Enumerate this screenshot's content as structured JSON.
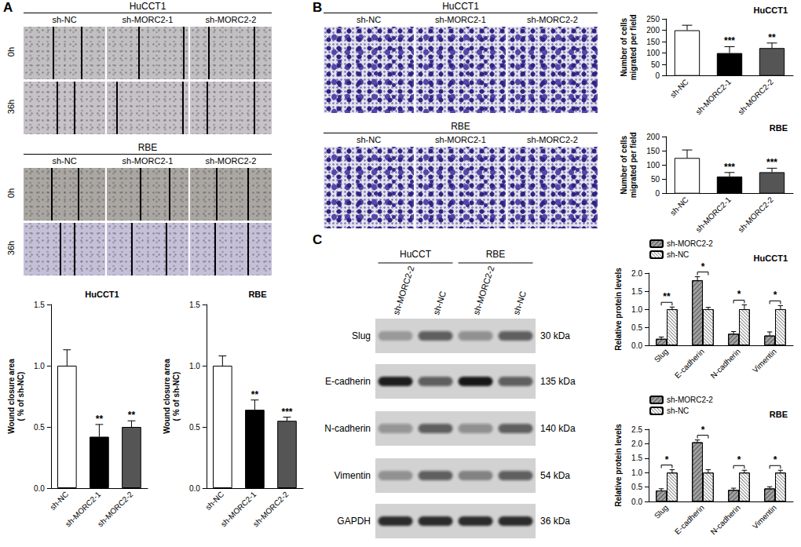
{
  "figure": {
    "panel_labels": [
      "A",
      "B",
      "C"
    ],
    "wound_healing": [
      {
        "title": "HuCCT1",
        "columns": [
          "sh-NC",
          "sh-MORC2-1",
          "sh-MORC2-2"
        ],
        "rows": [
          "0h",
          "36h"
        ]
      },
      {
        "title": "RBE",
        "columns": [
          "sh-NC",
          "sh-MORC2-1",
          "sh-MORC2-2"
        ],
        "rows": [
          "0h",
          "36h"
        ]
      }
    ],
    "transwell": [
      {
        "title": "HuCCT1",
        "columns": [
          "sh-NC",
          "sh-MORC2-1",
          "sh-MORC2-2"
        ]
      },
      {
        "title": "RBE",
        "columns": [
          "sh-NC",
          "sh-MORC2-1",
          "sh-MORC2-2"
        ]
      }
    ],
    "western_blot": {
      "groups": [
        {
          "label": "HuCCT",
          "lanes": [
            "sh-MORC2-2",
            "sh-NC"
          ]
        },
        {
          "label": "RBE",
          "lanes": [
            "sh-MORC2-2",
            "sh-NC"
          ]
        }
      ],
      "rows": [
        {
          "protein": "Slug",
          "size": "30 kDa"
        },
        {
          "protein": "E-cadherin",
          "size": "135 kDa"
        },
        {
          "protein": "N-cadherin",
          "size": "140 kDa"
        },
        {
          "protein": "Vimentin",
          "size": "54 kDa"
        },
        {
          "protein": "GAPDH",
          "size": "36 kDa"
        }
      ]
    }
  },
  "chart_data": [
    {
      "type": "bar",
      "title": "HuCCT1",
      "ylabel": "Wound closure area\n( % of sh-NC)",
      "categories": [
        "sh-NC",
        "sh-MORC2-1",
        "sh-MORC2-2"
      ],
      "values": [
        1.0,
        0.42,
        0.5
      ],
      "errors": [
        0.13,
        0.1,
        0.05
      ],
      "significance": [
        null,
        "**",
        "**"
      ],
      "colors": [
        "#ffffff",
        "#000000",
        "#555555"
      ],
      "ylim": [
        0,
        1.5
      ],
      "yticks": [
        {
          "value": 0,
          "label": "0.0"
        },
        0.5,
        {
          "value": 1,
          "label": "1.0"
        },
        1.5
      ],
      "grid": false
    },
    {
      "type": "bar",
      "title": "RBE",
      "ylabel": "Wound closure area\n( % of sh-NC)",
      "categories": [
        "sh-NC",
        "sh-MORC2-1",
        "sh-MORC2-2"
      ],
      "values": [
        1.0,
        0.64,
        0.55
      ],
      "errors": [
        0.08,
        0.08,
        0.03
      ],
      "significance": [
        null,
        "**",
        "***"
      ],
      "colors": [
        "#ffffff",
        "#000000",
        "#555555"
      ],
      "ylim": [
        0,
        1.5
      ],
      "yticks": [
        {
          "value": 0,
          "label": "0.0"
        },
        0.5,
        {
          "value": 1,
          "label": "1.0"
        },
        1.5
      ],
      "grid": false
    },
    {
      "type": "bar",
      "title": "HuCCT1",
      "ylabel": "Number of cells\nmigrated per field",
      "categories": [
        "sh-NC",
        "sh-MORC2-1",
        "sh-MORC2-2"
      ],
      "values": [
        200,
        100,
        122
      ],
      "errors": [
        22,
        28,
        22
      ],
      "significance": [
        null,
        "***",
        "**"
      ],
      "colors": [
        "#ffffff",
        "#000000",
        "#555555"
      ],
      "ylim": [
        0,
        250
      ],
      "yticks": [
        0,
        50,
        100,
        150,
        200,
        250
      ],
      "grid": false
    },
    {
      "type": "bar",
      "title": "RBE",
      "ylabel": "Number of cells\nmigrated per field",
      "categories": [
        "sh-NC",
        "sh-MORC2-1",
        "sh-MORC2-2"
      ],
      "values": [
        125,
        60,
        75
      ],
      "errors": [
        28,
        14,
        14
      ],
      "significance": [
        null,
        "***",
        "***"
      ],
      "colors": [
        "#ffffff",
        "#000000",
        "#555555"
      ],
      "ylim": [
        0,
        200
      ],
      "yticks": [
        0,
        50,
        100,
        150,
        200
      ],
      "grid": false
    },
    {
      "type": "bar",
      "title": "HuCCT1",
      "ylabel": "Relative protein levels",
      "categories": [
        "Slug",
        "E-cadherin",
        "N-cadherin",
        "Vimentin"
      ],
      "series": [
        {
          "name": "sh-MORC2-2",
          "color": "#a0a0a0",
          "values": [
            0.18,
            1.8,
            0.32,
            0.27
          ],
          "errors": [
            0.05,
            0.1,
            0.06,
            0.1
          ]
        },
        {
          "name": "sh-NC",
          "color": "#ffffff",
          "values": [
            1,
            1,
            1,
            1
          ],
          "errors": [
            0.06,
            0.05,
            0.12,
            0.1
          ]
        }
      ],
      "significance": [
        "**",
        "*",
        "*",
        "*"
      ],
      "ylim": [
        0,
        2
      ],
      "yticks": [
        {
          "value": 0,
          "label": "0.0"
        },
        0.5,
        {
          "value": 1,
          "label": "1.0"
        },
        1.5,
        {
          "value": 2,
          "label": "2.0"
        }
      ],
      "legend": "top-left",
      "grid": false
    },
    {
      "type": "bar",
      "title": "RBE",
      "ylabel": "Relative protein levels",
      "categories": [
        "Slug",
        "E-cadherin",
        "N-cadherin",
        "Vimentin"
      ],
      "series": [
        {
          "name": "sh-MORC2-2",
          "color": "#a0a0a0",
          "values": [
            0.38,
            2.05,
            0.4,
            0.45
          ],
          "errors": [
            0.06,
            0.08,
            0.06,
            0.06
          ]
        },
        {
          "name": "sh-NC",
          "color": "#ffffff",
          "values": [
            1,
            1,
            1,
            1
          ],
          "errors": [
            0.1,
            0.1,
            0.08,
            0.08
          ]
        }
      ],
      "significance": [
        "*",
        "*",
        "*",
        "*"
      ],
      "ylim": [
        0,
        2.5
      ],
      "yticks": [
        {
          "value": 0,
          "label": "0.0"
        },
        0.5,
        {
          "value": 1,
          "label": "1.0"
        },
        1.5,
        {
          "value": 2,
          "label": "2.0"
        },
        2.5
      ],
      "legend": "top-left",
      "grid": false
    }
  ]
}
